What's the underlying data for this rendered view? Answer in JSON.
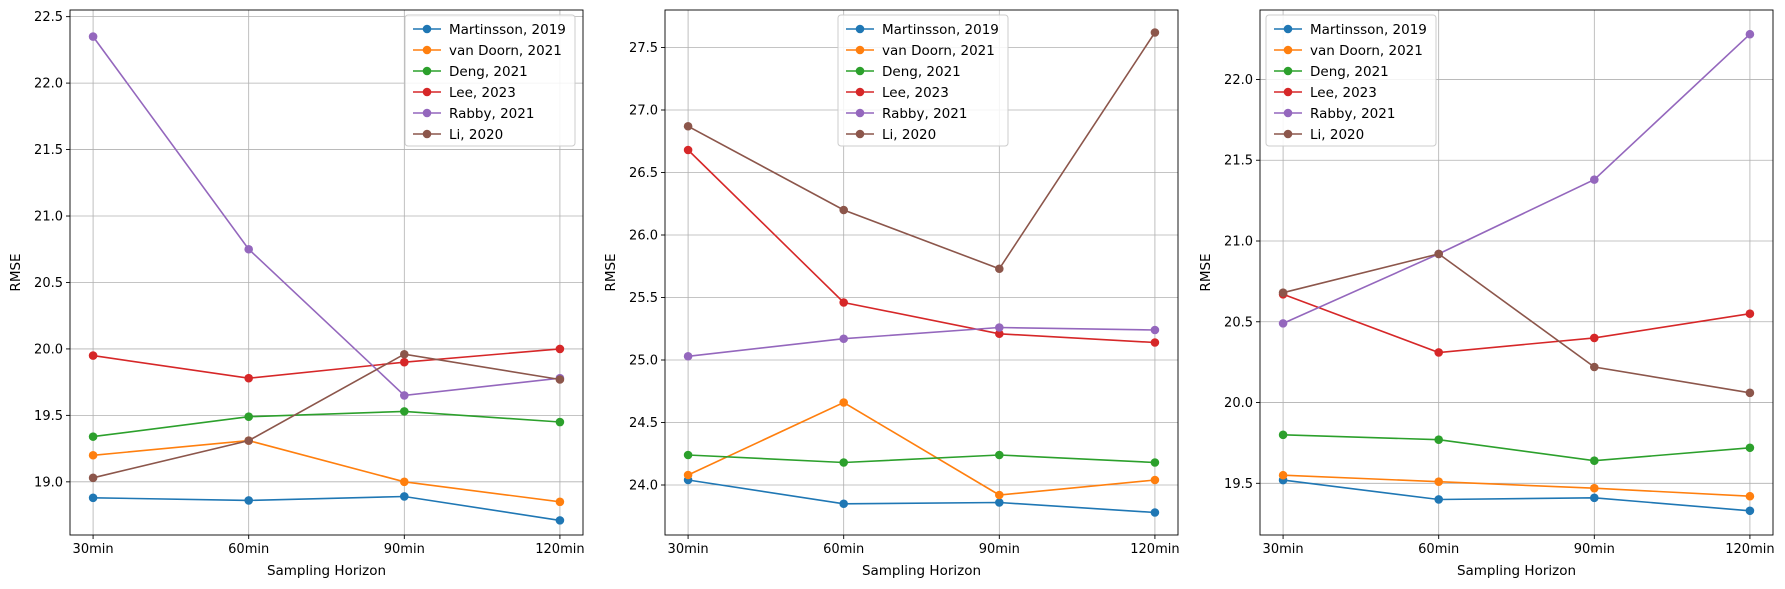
{
  "chart_data": [
    {
      "type": "line",
      "categories": [
        "30min",
        "60min",
        "90min",
        "120min"
      ],
      "xlabel": "Sampling Horizon",
      "ylabel": "RMSE",
      "ylim": [
        18.6,
        22.55
      ],
      "yticks": [
        "19.0",
        "19.5",
        "20.0",
        "20.5",
        "21.0",
        "21.5",
        "22.0",
        "22.5"
      ],
      "grid": true,
      "legend_position": "top-right",
      "series": [
        {
          "name": "Martinsson, 2019",
          "color": "#1f77b4",
          "values": [
            18.88,
            18.86,
            18.89,
            18.71
          ]
        },
        {
          "name": "van Doorn, 2021",
          "color": "#ff7f0e",
          "values": [
            19.2,
            19.31,
            19.0,
            18.85
          ]
        },
        {
          "name": "Deng, 2021",
          "color": "#2ca02c",
          "values": [
            19.34,
            19.49,
            19.53,
            19.45
          ]
        },
        {
          "name": "Lee, 2023",
          "color": "#d62728",
          "values": [
            19.95,
            19.78,
            19.9,
            20.0
          ]
        },
        {
          "name": "Rabby, 2021",
          "color": "#9467bd",
          "values": [
            22.35,
            20.75,
            19.65,
            19.78
          ]
        },
        {
          "name": "Li, 2020",
          "color": "#8c564b",
          "values": [
            19.03,
            19.31,
            19.96,
            19.77
          ]
        }
      ]
    },
    {
      "type": "line",
      "categories": [
        "30min",
        "60min",
        "90min",
        "120min"
      ],
      "xlabel": "Sampling Horizon",
      "ylabel": "RMSE",
      "ylim": [
        23.6,
        27.8
      ],
      "yticks": [
        "24.0",
        "24.5",
        "25.0",
        "25.5",
        "26.0",
        "26.5",
        "27.0",
        "27.5"
      ],
      "grid": true,
      "legend_position": "top-center",
      "series": [
        {
          "name": "Martinsson, 2019",
          "color": "#1f77b4",
          "values": [
            24.04,
            23.85,
            23.86,
            23.78
          ]
        },
        {
          "name": "van Doorn, 2021",
          "color": "#ff7f0e",
          "values": [
            24.08,
            24.66,
            23.92,
            24.04
          ]
        },
        {
          "name": "Deng, 2021",
          "color": "#2ca02c",
          "values": [
            24.24,
            24.18,
            24.24,
            24.18
          ]
        },
        {
          "name": "Lee, 2023",
          "color": "#d62728",
          "values": [
            26.68,
            25.46,
            25.21,
            25.14
          ]
        },
        {
          "name": "Rabby, 2021",
          "color": "#9467bd",
          "values": [
            25.03,
            25.17,
            25.26,
            25.24
          ]
        },
        {
          "name": "Li, 2020",
          "color": "#8c564b",
          "values": [
            26.87,
            26.2,
            25.73,
            27.62
          ]
        }
      ]
    },
    {
      "type": "line",
      "categories": [
        "30min",
        "60min",
        "90min",
        "120min"
      ],
      "xlabel": "Sampling Horizon",
      "ylabel": "RMSE",
      "ylim": [
        19.18,
        22.43
      ],
      "yticks": [
        "19.5",
        "20.0",
        "20.5",
        "21.0",
        "21.5",
        "22.0"
      ],
      "grid": true,
      "legend_position": "top-left",
      "series": [
        {
          "name": "Martinsson, 2019",
          "color": "#1f77b4",
          "values": [
            19.52,
            19.4,
            19.41,
            19.33
          ]
        },
        {
          "name": "van Doorn, 2021",
          "color": "#ff7f0e",
          "values": [
            19.55,
            19.51,
            19.47,
            19.42
          ]
        },
        {
          "name": "Deng, 2021",
          "color": "#2ca02c",
          "values": [
            19.8,
            19.77,
            19.64,
            19.72
          ]
        },
        {
          "name": "Lee, 2023",
          "color": "#d62728",
          "values": [
            20.67,
            20.31,
            20.4,
            20.55
          ]
        },
        {
          "name": "Rabby, 2021",
          "color": "#9467bd",
          "values": [
            20.49,
            20.92,
            21.38,
            22.28
          ]
        },
        {
          "name": "Li, 2020",
          "color": "#8c564b",
          "values": [
            20.68,
            20.92,
            20.22,
            20.06
          ]
        }
      ]
    }
  ]
}
